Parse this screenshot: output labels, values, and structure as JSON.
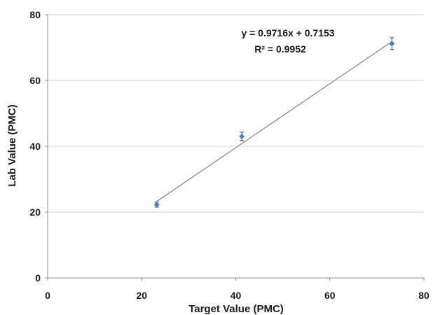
{
  "chart_data": {
    "type": "scatter",
    "title": "",
    "xlabel": "Target Value (PMC)",
    "ylabel": "Lab Value (PMC)",
    "xlim": [
      0,
      80
    ],
    "ylim": [
      0,
      80
    ],
    "x_ticks": [
      0,
      20,
      40,
      60,
      80
    ],
    "y_ticks": [
      0,
      20,
      40,
      60,
      80
    ],
    "grid": "horizontal",
    "legend": "none",
    "series": [
      {
        "color": "#4a7ebb",
        "points": [
          {
            "x": 23.2,
            "y": 22.3,
            "err": 0.8
          },
          {
            "x": 41.3,
            "y": 43.0,
            "err": 1.3
          },
          {
            "x": 73.2,
            "y": 71.2,
            "err": 1.8
          }
        ]
      }
    ],
    "trendline": {
      "slope": 0.9716,
      "intercept": 0.7153,
      "x_range": [
        23.2,
        73.2
      ],
      "equation": "y = 0.9716x + 0.7153",
      "r_squared": "R² = 0.9952"
    }
  }
}
